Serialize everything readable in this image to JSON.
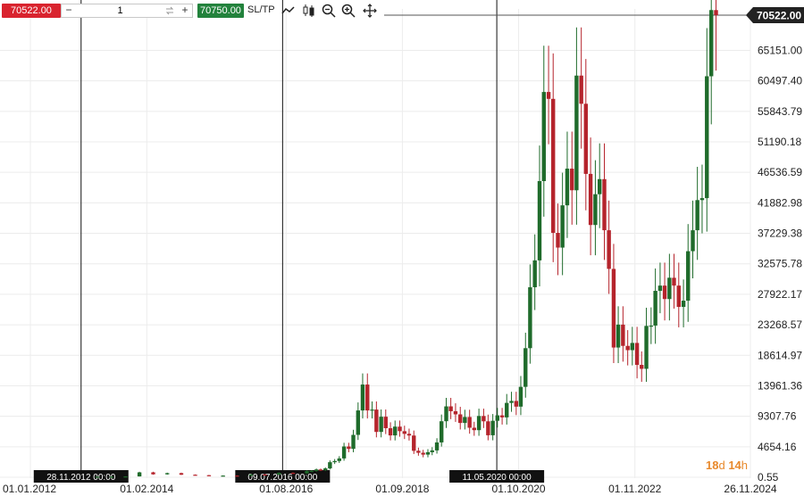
{
  "toolbar": {
    "sell_price": "70522.00",
    "quantity": "1",
    "minus_label": "−",
    "plus_label": "+",
    "buy_price": "70750.00",
    "sltp_label": "SL/TP"
  },
  "colors": {
    "sell": "#d9232e",
    "buy": "#22823c",
    "bull_candle": "#1f6b2b",
    "bear_candle": "#b5242c",
    "countdown": "#e8892c"
  },
  "icons": [
    "line-chart-icon",
    "candles-icon",
    "zoom-out-icon",
    "zoom-in-icon",
    "crosshair-move-icon"
  ],
  "current_price_label": "70522.00",
  "countdown": {
    "days": "18",
    "d": "d",
    "hours": "14",
    "h": "h"
  },
  "markers": [
    {
      "label": "28.11.2012 00:00",
      "date": "2012-11-28"
    },
    {
      "label": "09.07.2016 00:00",
      "date": "2016-07-09"
    },
    {
      "label": "11.05.2020 00:00",
      "date": "2020-05-11"
    }
  ],
  "chart_data": {
    "type": "candlestick",
    "current_price": 70522.0,
    "y_ticks": [
      "65151.00",
      "60497.40",
      "55843.79",
      "51190.18",
      "46536.59",
      "41882.98",
      "37229.38",
      "32575.78",
      "27922.17",
      "23268.57",
      "18614.97",
      "13961.36",
      "9307.76",
      "4654.16",
      "0.55"
    ],
    "x_ticks": [
      "01.01.2012",
      "01.02.2014",
      "01.08.2016",
      "01.09.2018",
      "01.10.2020",
      "01.11.2022",
      "26.11.2024"
    ],
    "ylim": [
      0.55,
      70522
    ],
    "grid": true,
    "candles_monthly_close": [
      [
        "2013-03",
        90
      ],
      [
        "2013-06",
        100
      ],
      [
        "2013-09",
        130
      ],
      [
        "2013-12",
        750
      ],
      [
        "2014-03",
        450
      ],
      [
        "2014-06",
        630
      ],
      [
        "2014-09",
        390
      ],
      [
        "2014-12",
        320
      ],
      [
        "2015-03",
        245
      ],
      [
        "2015-06",
        260
      ],
      [
        "2015-09",
        235
      ],
      [
        "2015-12",
        430
      ],
      [
        "2016-03",
        415
      ],
      [
        "2016-06",
        670
      ],
      [
        "2016-09",
        605
      ],
      [
        "2016-12",
        960
      ],
      [
        "2017-01",
        970
      ],
      [
        "2017-02",
        1190
      ],
      [
        "2017-03",
        1080
      ],
      [
        "2017-04",
        1350
      ],
      [
        "2017-05",
        2300
      ],
      [
        "2017-06",
        2480
      ],
      [
        "2017-07",
        2875
      ],
      [
        "2017-08",
        4700
      ],
      [
        "2017-09",
        4340
      ],
      [
        "2017-10",
        6470
      ],
      [
        "2017-11",
        10200
      ],
      [
        "2017-12",
        14150
      ],
      [
        "2018-01",
        10200
      ],
      [
        "2018-02",
        10330
      ],
      [
        "2018-03",
        6920
      ],
      [
        "2018-04",
        9240
      ],
      [
        "2018-05",
        7490
      ],
      [
        "2018-06",
        6390
      ],
      [
        "2018-07",
        7730
      ],
      [
        "2018-08",
        7030
      ],
      [
        "2018-09",
        6630
      ],
      [
        "2018-10",
        6370
      ],
      [
        "2018-11",
        4040
      ],
      [
        "2018-12",
        3740
      ],
      [
        "2019-01",
        3460
      ],
      [
        "2019-02",
        3830
      ],
      [
        "2019-03",
        4100
      ],
      [
        "2019-04",
        5320
      ],
      [
        "2019-05",
        8550
      ],
      [
        "2019-06",
        10820
      ],
      [
        "2019-07",
        10080
      ],
      [
        "2019-08",
        9600
      ],
      [
        "2019-09",
        8290
      ],
      [
        "2019-10",
        9200
      ],
      [
        "2019-11",
        7560
      ],
      [
        "2019-12",
        7190
      ],
      [
        "2020-01",
        9350
      ],
      [
        "2020-02",
        8540
      ],
      [
        "2020-03",
        6410
      ],
      [
        "2020-04",
        8620
      ],
      [
        "2020-05",
        9450
      ],
      [
        "2020-06",
        9140
      ],
      [
        "2020-07",
        11350
      ],
      [
        "2020-08",
        11650
      ],
      [
        "2020-09",
        10780
      ],
      [
        "2020-10",
        13800
      ],
      [
        "2020-11",
        19700
      ],
      [
        "2020-12",
        29000
      ],
      [
        "2021-01",
        33100
      ],
      [
        "2021-02",
        45200
      ],
      [
        "2021-03",
        58800
      ],
      [
        "2021-04",
        57750
      ],
      [
        "2021-05",
        37300
      ],
      [
        "2021-06",
        35050
      ],
      [
        "2021-07",
        41500
      ],
      [
        "2021-08",
        47100
      ],
      [
        "2021-09",
        43800
      ],
      [
        "2021-10",
        61300
      ],
      [
        "2021-11",
        57000
      ],
      [
        "2021-12",
        46300
      ],
      [
        "2022-01",
        38500
      ],
      [
        "2022-02",
        43200
      ],
      [
        "2022-03",
        45500
      ],
      [
        "2022-04",
        37700
      ],
      [
        "2022-05",
        31800
      ],
      [
        "2022-06",
        19800
      ],
      [
        "2022-07",
        23300
      ],
      [
        "2022-08",
        20050
      ],
      [
        "2022-09",
        19400
      ],
      [
        "2022-10",
        20500
      ],
      [
        "2022-11",
        17150
      ],
      [
        "2022-12",
        16550
      ],
      [
        "2023-01",
        23100
      ],
      [
        "2023-02",
        23150
      ],
      [
        "2023-03",
        28450
      ],
      [
        "2023-04",
        29250
      ],
      [
        "2023-05",
        27200
      ],
      [
        "2023-06",
        30450
      ],
      [
        "2023-07",
        29250
      ],
      [
        "2023-08",
        26000
      ],
      [
        "2023-09",
        26950
      ],
      [
        "2023-10",
        34500
      ],
      [
        "2023-11",
        37700
      ],
      [
        "2023-12",
        42300
      ],
      [
        "2024-01",
        42600
      ],
      [
        "2024-02",
        61200
      ],
      [
        "2024-03",
        71300
      ],
      [
        "2024-04",
        70522
      ]
    ]
  }
}
